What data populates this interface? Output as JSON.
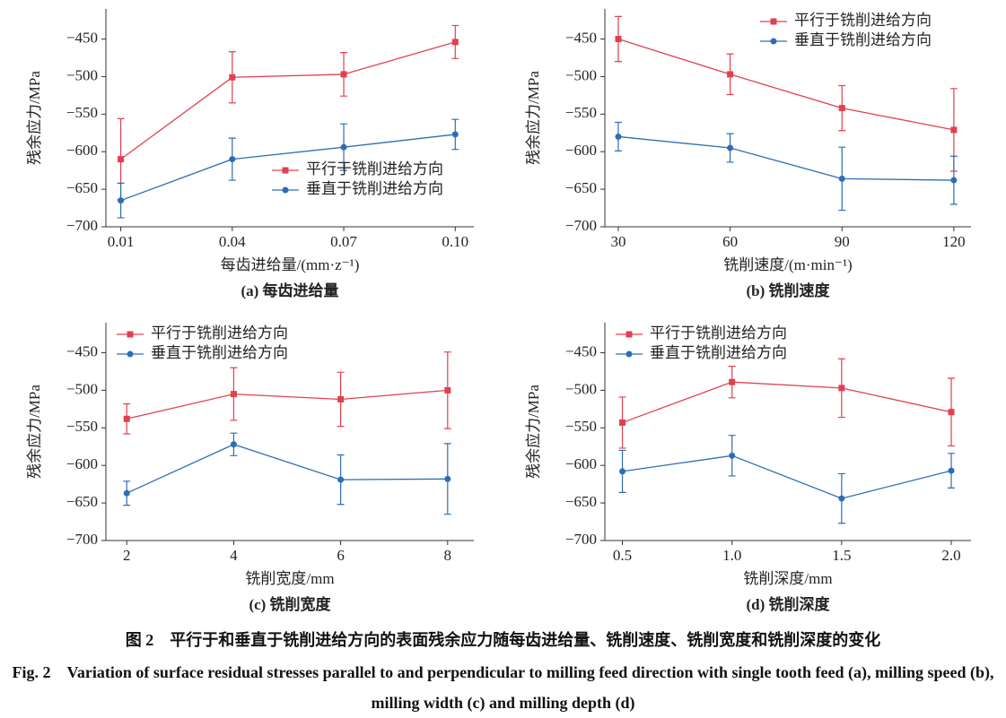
{
  "chart_data": [
    {
      "type": "line",
      "caption": "(a) 每齿进给量",
      "xlabel": "每齿进给量/(mm·z⁻¹)",
      "ylabel": "残余应力/MPa",
      "x": [
        0.01,
        0.04,
        0.07,
        0.1
      ],
      "xlim": [
        0.006,
        0.105
      ],
      "xticks": [
        0.01,
        0.04,
        0.07,
        {
          "value": 0.1,
          "label": "0.10"
        }
      ],
      "ylim": [
        -700,
        -410
      ],
      "yticks": [
        {
          "value": -700,
          "label": "−700"
        },
        {
          "value": -650,
          "label": "−650"
        },
        {
          "value": -600,
          "label": "−600"
        },
        {
          "value": -550,
          "label": "−550"
        },
        {
          "value": -500,
          "label": "−500"
        },
        {
          "value": -450,
          "label": "−450"
        }
      ],
      "legend": "lower right",
      "grid": false,
      "series": [
        {
          "name": "平行于铣削进给方向",
          "color": "#e0414f",
          "marker": "square",
          "values": [
            -610,
            -501,
            -497,
            -454
          ],
          "errors": [
            54,
            34,
            29,
            22
          ]
        },
        {
          "name": "垂直于铣削进给方向",
          "color": "#2e6db4",
          "marker": "circle",
          "values": [
            -665,
            -610,
            -594,
            -577
          ],
          "errors": [
            23,
            28,
            31,
            20
          ]
        }
      ]
    },
    {
      "type": "line",
      "caption": "(b) 铣削速度",
      "xlabel": "铣削速度/(m·min⁻¹)",
      "ylabel": "残余应力/MPa",
      "x": [
        30,
        60,
        90,
        120
      ],
      "xlim": [
        26.4,
        124.6
      ],
      "xticks": [
        30,
        60,
        90,
        120
      ],
      "ylim": [
        -700,
        -410
      ],
      "yticks": [
        {
          "value": -700,
          "label": "−700"
        },
        {
          "value": -650,
          "label": "−650"
        },
        {
          "value": -600,
          "label": "−600"
        },
        {
          "value": -550,
          "label": "−550"
        },
        {
          "value": -500,
          "label": "−500"
        },
        {
          "value": -450,
          "label": "−450"
        }
      ],
      "legend": "upper right",
      "grid": false,
      "series": [
        {
          "name": "平行于铣削进给方向",
          "color": "#e0414f",
          "marker": "square",
          "values": [
            -450,
            -497,
            -542,
            -571
          ],
          "errors": [
            30,
            27,
            30,
            55
          ]
        },
        {
          "name": "垂直于铣削进给方向",
          "color": "#2e6db4",
          "marker": "circle",
          "values": [
            -580,
            -595,
            -636,
            -638
          ],
          "errors": [
            19,
            19,
            42,
            32
          ]
        }
      ]
    },
    {
      "type": "line",
      "caption": "(c) 铣削宽度",
      "xlabel": "铣削宽度/mm",
      "ylabel": "残余应力/MPa",
      "x": [
        2,
        4,
        6,
        8
      ],
      "xlim": [
        1.61,
        8.49
      ],
      "xticks": [
        2,
        4,
        6,
        8
      ],
      "ylim": [
        -700,
        -410
      ],
      "yticks": [
        {
          "value": -700,
          "label": "−700"
        },
        {
          "value": -650,
          "label": "−650"
        },
        {
          "value": -600,
          "label": "−600"
        },
        {
          "value": -550,
          "label": "−550"
        },
        {
          "value": -500,
          "label": "−500"
        },
        {
          "value": -450,
          "label": "−450"
        }
      ],
      "legend": "upper left",
      "grid": false,
      "series": [
        {
          "name": "平行于铣削进给方向",
          "color": "#e0414f",
          "marker": "square",
          "values": [
            -538,
            -505,
            -512,
            -500
          ],
          "errors": [
            20,
            35,
            36,
            51
          ]
        },
        {
          "name": "垂直于铣削进给方向",
          "color": "#2e6db4",
          "marker": "circle",
          "values": [
            -637,
            -572,
            -619,
            -618
          ],
          "errors": [
            16,
            15,
            33,
            47
          ]
        }
      ]
    },
    {
      "type": "line",
      "caption": "(d) 铣削深度",
      "xlabel": "铣削深度/mm",
      "ylabel": "残余应力/MPa",
      "x": [
        0.5,
        1,
        1.5,
        2
      ],
      "xlim": [
        0.42,
        2.09
      ],
      "xticks": [
        0.5,
        {
          "value": 1,
          "label": "1.0"
        },
        1.5,
        {
          "value": 2,
          "label": "2.0"
        }
      ],
      "ylim": [
        -700,
        -410
      ],
      "yticks": [
        {
          "value": -700,
          "label": "−700"
        },
        {
          "value": -650,
          "label": "−650"
        },
        {
          "value": -600,
          "label": "−600"
        },
        {
          "value": -550,
          "label": "−550"
        },
        {
          "value": -500,
          "label": "−500"
        },
        {
          "value": -450,
          "label": "−450"
        }
      ],
      "legend": "upper left",
      "grid": false,
      "series": [
        {
          "name": "平行于铣削进给方向",
          "color": "#e0414f",
          "marker": "square",
          "values": [
            -543,
            -489,
            -497,
            -529
          ],
          "errors": [
            34,
            21,
            39,
            45
          ]
        },
        {
          "name": "垂直于铣削进给方向",
          "color": "#2e6db4",
          "marker": "circle",
          "values": [
            -608,
            -587,
            -644,
            -607
          ],
          "errors": [
            28,
            27,
            33,
            23
          ]
        }
      ]
    }
  ],
  "caption_cn": "图 2　平行于和垂直于铣削进给方向的表面残余应力随每齿进给量、铣削速度、铣削宽度和铣削深度的变化",
  "caption_en": "Fig. 2　Variation of surface residual stresses parallel to and perpendicular to milling feed direction with single tooth feed (a), milling speed (b), milling width (c) and milling depth (d)"
}
